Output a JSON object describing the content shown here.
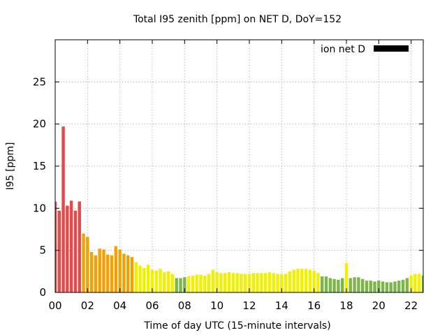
{
  "chart_data": {
    "type": "bar",
    "title": "Total I95 zenith [ppm] on NET D, DoY=152",
    "xlabel": "Time of day UTC (15-minute intervals)",
    "ylabel": "I95 [ppm]",
    "xlim": [
      0,
      22.75
    ],
    "ylim": [
      0,
      30
    ],
    "xtick_values": [
      0,
      2,
      4,
      6,
      8,
      10,
      12,
      14,
      16,
      18,
      20,
      22
    ],
    "xtick_labels": [
      "00",
      "02",
      "04",
      "06",
      "08",
      "10",
      "12",
      "14",
      "16",
      "18",
      "20",
      "22"
    ],
    "ytick_values": [
      0,
      5,
      10,
      15,
      20,
      25
    ],
    "ytick_labels": [
      "0",
      "5",
      "10",
      "15",
      "20",
      "25"
    ],
    "grid": true,
    "legend": {
      "label": "ion net D",
      "position": "top-right",
      "swatch_color": "#000000"
    },
    "interval_hours": 0.25,
    "bar_width_hours": 0.19,
    "x": [
      0,
      0.25,
      0.5,
      0.75,
      1,
      1.25,
      1.5,
      1.75,
      2,
      2.25,
      2.5,
      2.75,
      3,
      3.25,
      3.5,
      3.75,
      4,
      4.25,
      4.5,
      4.75,
      5,
      5.25,
      5.5,
      5.75,
      6,
      6.25,
      6.5,
      6.75,
      7,
      7.25,
      7.5,
      7.75,
      8,
      8.25,
      8.5,
      8.75,
      9,
      9.25,
      9.5,
      9.75,
      10,
      10.25,
      10.5,
      10.75,
      11,
      11.25,
      11.5,
      11.75,
      12,
      12.25,
      12.5,
      12.75,
      13,
      13.25,
      13.5,
      13.75,
      14,
      14.25,
      14.5,
      14.75,
      15,
      15.25,
      15.5,
      15.75,
      16,
      16.25,
      16.5,
      16.75,
      17,
      17.25,
      17.5,
      17.75,
      18,
      18.25,
      18.5,
      18.75,
      19,
      19.25,
      19.5,
      19.75,
      20,
      20.25,
      20.5,
      20.75,
      21,
      21.25,
      21.5,
      21.75,
      22,
      22.25,
      22.5,
      22.75
    ],
    "values": [
      10.8,
      9.7,
      19.7,
      10.3,
      10.9,
      9.7,
      10.8,
      7.0,
      6.6,
      4.8,
      4.4,
      5.2,
      5.1,
      4.5,
      4.4,
      5.5,
      5.1,
      4.6,
      4.4,
      4.2,
      3.6,
      3.2,
      2.9,
      3.3,
      2.7,
      2.6,
      2.8,
      2.4,
      2.5,
      2.2,
      1.7,
      1.7,
      1.8,
      1.9,
      2.0,
      2.1,
      2.1,
      2.0,
      2.2,
      2.7,
      2.4,
      2.3,
      2.3,
      2.4,
      2.3,
      2.3,
      2.2,
      2.2,
      2.2,
      2.3,
      2.3,
      2.3,
      2.3,
      2.4,
      2.3,
      2.2,
      2.2,
      2.2,
      2.5,
      2.7,
      2.8,
      2.8,
      2.8,
      2.7,
      2.6,
      2.3,
      1.9,
      1.9,
      1.7,
      1.6,
      1.5,
      1.7,
      3.5,
      1.7,
      1.8,
      1.8,
      1.6,
      1.4,
      1.4,
      1.3,
      1.4,
      1.3,
      1.2,
      1.2,
      1.3,
      1.4,
      1.5,
      1.7,
      2.0,
      2.2,
      2.2,
      2.0
    ],
    "colors": [
      "#e34a4a",
      "#e34a4a",
      "#e34a4a",
      "#e34a4a",
      "#e34a4a",
      "#e34a4a",
      "#e34a4a",
      "#f5a000",
      "#f5a000",
      "#f5a000",
      "#f5a000",
      "#f5a000",
      "#f5a000",
      "#f5a000",
      "#f5a000",
      "#f5a000",
      "#f5a000",
      "#f5a000",
      "#f5a000",
      "#f5a000",
      "#f0f000",
      "#f0f000",
      "#f0f000",
      "#f0f000",
      "#f0f000",
      "#f0f000",
      "#f0f000",
      "#f0f000",
      "#f0f000",
      "#f0f000",
      "#7ab648",
      "#7ab648",
      "#7ab648",
      "#f0f000",
      "#f0f000",
      "#f0f000",
      "#f0f000",
      "#f0f000",
      "#f0f000",
      "#f0f000",
      "#f0f000",
      "#f0f000",
      "#f0f000",
      "#f0f000",
      "#f0f000",
      "#f0f000",
      "#f0f000",
      "#f0f000",
      "#f0f000",
      "#f0f000",
      "#f0f000",
      "#f0f000",
      "#f0f000",
      "#f0f000",
      "#f0f000",
      "#f0f000",
      "#f0f000",
      "#f0f000",
      "#f0f000",
      "#f0f000",
      "#f0f000",
      "#f0f000",
      "#f0f000",
      "#f0f000",
      "#f0f000",
      "#f0f000",
      "#7ab648",
      "#7ab648",
      "#7ab648",
      "#7ab648",
      "#7ab648",
      "#7ab648",
      "#f0f000",
      "#7ab648",
      "#7ab648",
      "#7ab648",
      "#7ab648",
      "#7ab648",
      "#7ab648",
      "#7ab648",
      "#7ab648",
      "#7ab648",
      "#7ab648",
      "#7ab648",
      "#7ab648",
      "#7ab648",
      "#7ab648",
      "#7ab648",
      "#f0f000",
      "#f0f000",
      "#f0f000",
      "#7ab648"
    ]
  }
}
